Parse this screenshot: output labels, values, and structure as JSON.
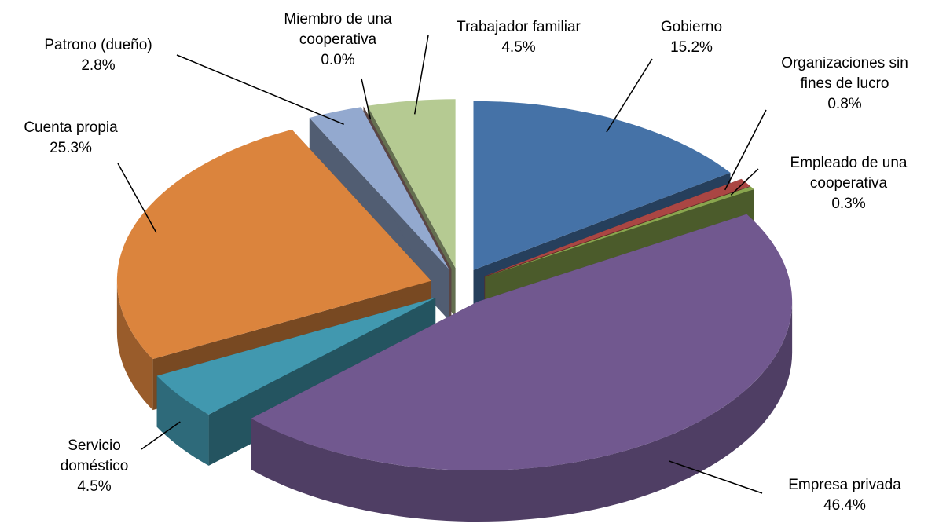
{
  "chart_data": {
    "type": "pie",
    "categories": [
      "Gobierno",
      "Organizaciones sin fines de lucro",
      "Empleado de una cooperativa",
      "Empresa privada",
      "Servicio doméstico",
      "Cuenta propia",
      "Patrono (dueño)",
      "Miembro de una cooperativa",
      "Trabajador familiar"
    ],
    "values": [
      15.2,
      0.8,
      0.3,
      46.4,
      4.5,
      25.3,
      2.8,
      0.0,
      4.5
    ],
    "value_labels": [
      "15.2%",
      "0.8%",
      "0.3%",
      "46.4%",
      "4.5%",
      "25.3%",
      "2.8%",
      "0.0%",
      "4.5%"
    ],
    "colors": [
      "#4572a7",
      "#aa4643",
      "#89a54e",
      "#71588f",
      "#4198af",
      "#db843d",
      "#93a9cf",
      "#a47d7c",
      "#b5ca92"
    ]
  }
}
